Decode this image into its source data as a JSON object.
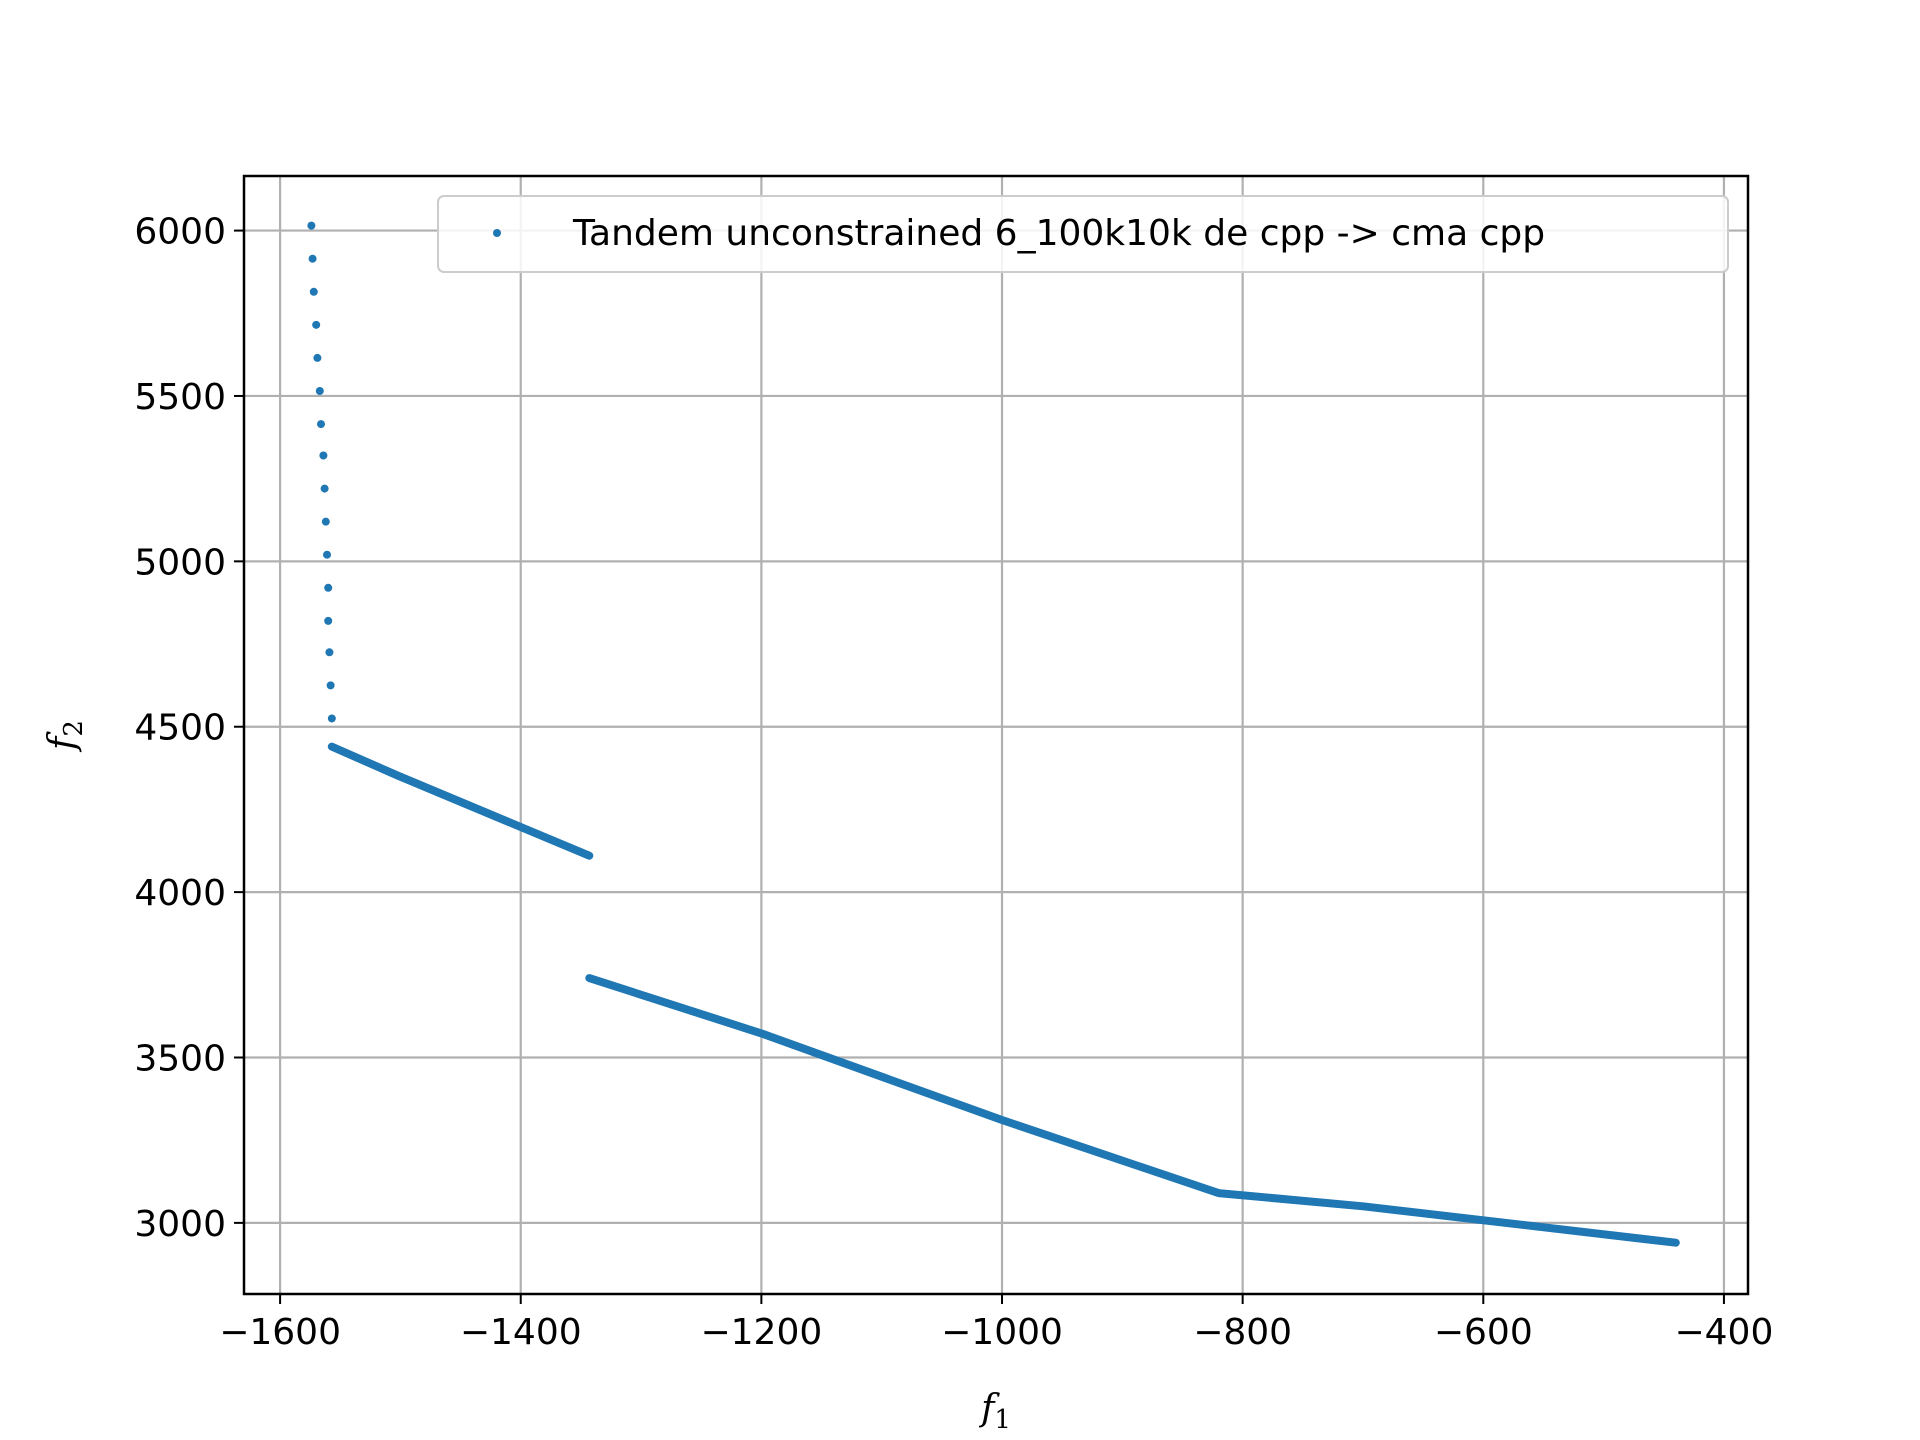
{
  "chart_data": {
    "type": "scatter",
    "title": "",
    "xlabel": "f",
    "xlabel_sub": "1",
    "ylabel": "f",
    "ylabel_sub": "2",
    "xlim": [
      -1630,
      -380
    ],
    "ylim": [
      2785,
      6165
    ],
    "xticks": [
      -1600,
      -1400,
      -1200,
      -1000,
      -800,
      -600,
      -400
    ],
    "xtick_labels": [
      "−1600",
      "−1400",
      "−1200",
      "−1000",
      "−800",
      "−600",
      "−400"
    ],
    "yticks": [
      3000,
      3500,
      4000,
      4500,
      5000,
      5500,
      6000
    ],
    "ytick_labels": [
      "3000",
      "3500",
      "4000",
      "4500",
      "5000",
      "5500",
      "6000"
    ],
    "grid": true,
    "legend_position": "top-right",
    "series": [
      {
        "name": "Tandem unconstrained 6_100k10k de cpp -> cma cpp",
        "color": "#1f77b4",
        "points": [
          [
            -1574,
            6015
          ],
          [
            -1573,
            5915
          ],
          [
            -1572,
            5815
          ],
          [
            -1570,
            5715
          ],
          [
            -1569,
            5615
          ],
          [
            -1567,
            5515
          ],
          [
            -1566,
            5415
          ],
          [
            -1564,
            5320
          ],
          [
            -1563,
            5220
          ],
          [
            -1562,
            5120
          ],
          [
            -1561,
            5020
          ],
          [
            -1560,
            4920
          ],
          [
            -1560,
            4820
          ],
          [
            -1559,
            4725
          ],
          [
            -1558,
            4625
          ],
          [
            -1557,
            4525
          ]
        ],
        "segments": [
          [
            [
              -1557,
              4440
            ],
            [
              -1502,
              4352
            ],
            [
              -1343,
              4110
            ]
          ],
          [
            [
              -1343,
              3740
            ],
            [
              -1200,
              3573
            ],
            [
              -1000,
              3311
            ],
            [
              -820,
              3090
            ],
            [
              -700,
              3050
            ],
            [
              -440,
              2940
            ]
          ]
        ]
      }
    ]
  }
}
